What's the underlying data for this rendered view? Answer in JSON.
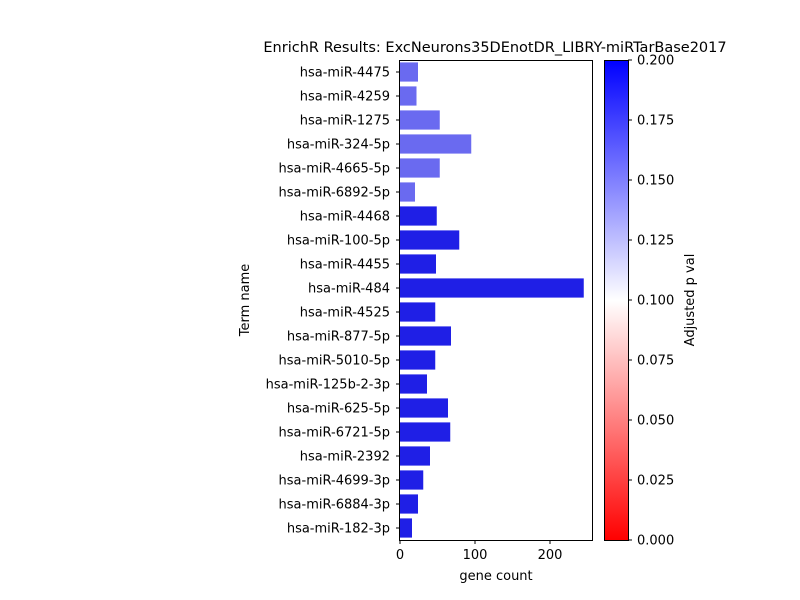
{
  "chart_data": {
    "type": "bar",
    "orientation": "horizontal",
    "title": "EnrichR Results: ExcNeurons35DEnotDR_LIBRY-miRTarBase2017",
    "xlabel": "gene count",
    "ylabel": "Term name",
    "xlim": [
      0,
      256
    ],
    "xticks": [
      0,
      100,
      200
    ],
    "categories": [
      "hsa-miR-4475",
      "hsa-miR-4259",
      "hsa-miR-1275",
      "hsa-miR-324-5p",
      "hsa-miR-4665-5p",
      "hsa-miR-6892-5p",
      "hsa-miR-4468",
      "hsa-miR-100-5p",
      "hsa-miR-4455",
      "hsa-miR-484",
      "hsa-miR-4525",
      "hsa-miR-877-5p",
      "hsa-miR-5010-5p",
      "hsa-miR-125b-2-3p",
      "hsa-miR-625-5p",
      "hsa-miR-6721-5p",
      "hsa-miR-2392",
      "hsa-miR-4699-3p",
      "hsa-miR-6884-3p",
      "hsa-miR-182-3p"
    ],
    "values": [
      24,
      22,
      53,
      95,
      53,
      20,
      49,
      79,
      48,
      245,
      47,
      68,
      47,
      36,
      64,
      67,
      40,
      31,
      24,
      16
    ],
    "colors": [
      "#6a6af0",
      "#6a6af0",
      "#6a6af0",
      "#6a6af0",
      "#6a6af0",
      "#6a6af0",
      "#1f1fe6",
      "#1f1fe6",
      "#1f1fe6",
      "#1f1fe6",
      "#1f1fe6",
      "#1f1fe6",
      "#1f1fe6",
      "#1f1fe6",
      "#1f1fe6",
      "#1f1fe6",
      "#1f1fe6",
      "#1f1fe6",
      "#1f1fe6",
      "#1f1fe6"
    ],
    "colorbar": {
      "label": "Adjusted p val",
      "range": [
        0,
        0.2
      ],
      "ticks": [
        "0.000",
        "0.025",
        "0.050",
        "0.075",
        "0.100",
        "0.125",
        "0.150",
        "0.175",
        "0.200"
      ],
      "colors": [
        "#ff0000",
        "#ffffff",
        "#0000ff"
      ]
    }
  }
}
